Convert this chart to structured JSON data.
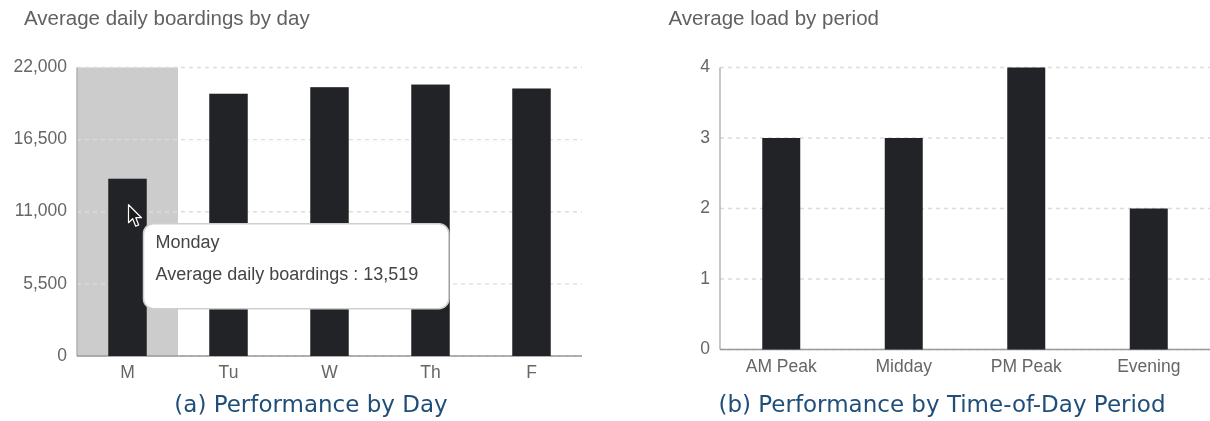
{
  "chart_data": [
    {
      "type": "bar",
      "title": "Average daily boardings by day",
      "categories": [
        "M",
        "Tu",
        "W",
        "Th",
        "F"
      ],
      "values": [
        13519,
        20000,
        20500,
        20700,
        20400
      ],
      "color": "#222326",
      "ylim": [
        0,
        22000
      ],
      "yticks": [
        0,
        {
          "value": 5500,
          "label": "5,500"
        },
        {
          "value": 11000,
          "label": "11,000"
        },
        {
          "value": 16500,
          "label": "16,500"
        },
        {
          "value": 22000,
          "label": "22,000"
        }
      ],
      "grid": "y",
      "bands": [
        {
          "axis": "x",
          "from": "M",
          "to": "M",
          "color": "#cccccc"
        }
      ],
      "annotations": [
        "Monday",
        "Average daily boardings : 13,519",
        "(a) Performance by Day"
      ]
    },
    {
      "type": "bar",
      "title": "Average load by period",
      "categories": [
        "AM Peak",
        "Midday",
        "PM Peak",
        "Evening"
      ],
      "values": [
        3,
        3,
        4,
        2
      ],
      "color": "#222326",
      "ylim": [
        0,
        4
      ],
      "yticks": [
        0,
        1,
        2,
        3,
        4
      ],
      "grid": "y",
      "annotations": [
        "(b) Performance by Time-of-Day Period"
      ]
    }
  ]
}
